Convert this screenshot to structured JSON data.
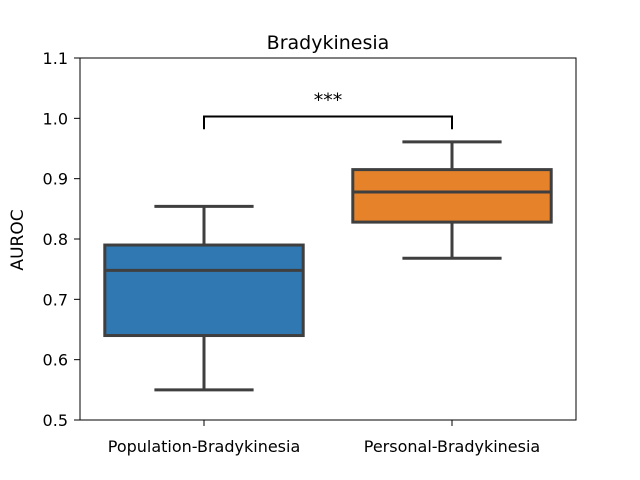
{
  "chart_data": {
    "type": "boxplot",
    "title": "Bradykinesia",
    "xlabel": "",
    "ylabel": "AUROC",
    "ylim": [
      0.5,
      1.1
    ],
    "yticks": [
      "0.5",
      "0.6",
      "0.7",
      "0.8",
      "0.9",
      "1.0",
      "1.1"
    ],
    "grid": false,
    "categories": [
      "Population-Bradykinesia",
      "Personal-Bradykinesia"
    ],
    "boxes": [
      {
        "category": "Population-Bradykinesia",
        "whisker_low": 0.55,
        "q1": 0.64,
        "median": 0.748,
        "q3": 0.79,
        "whisker_high": 0.854,
        "color": "#2f78b2"
      },
      {
        "category": "Personal-Bradykinesia",
        "whisker_low": 0.768,
        "q1": 0.828,
        "median": 0.878,
        "q3": 0.915,
        "whisker_high": 0.961,
        "color": "#e6822a"
      }
    ],
    "annotations": [
      {
        "text": "***",
        "from": 0,
        "to": 1,
        "y": 1.003,
        "drop_to": 0.982
      }
    ]
  }
}
